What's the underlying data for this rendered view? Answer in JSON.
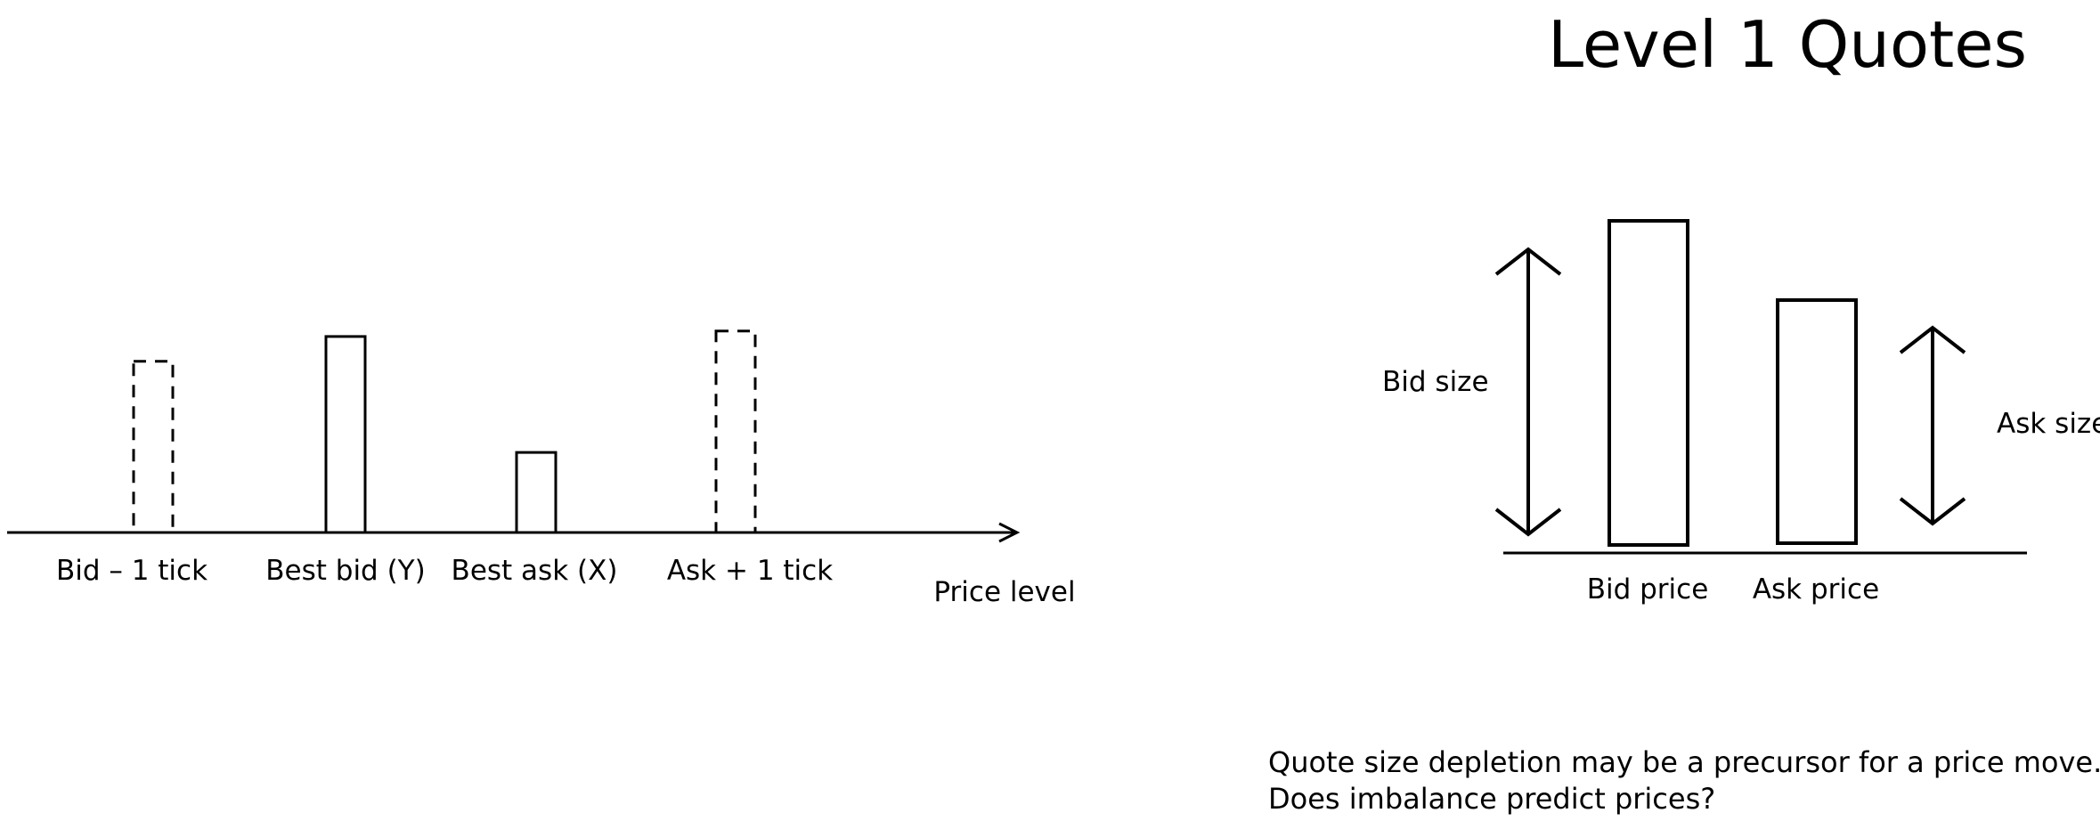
{
  "title": "Level 1 Quotes",
  "depth_diagram": {
    "levels": [
      {
        "label": "Bid – 1 tick",
        "size": 0.62,
        "style": "dashed"
      },
      {
        "label": "Best bid (Y)",
        "size": 0.71,
        "style": "solid"
      },
      {
        "label": "Best ask (X)",
        "size": 0.29,
        "style": "solid"
      },
      {
        "label": "Ask + 1 tick",
        "size": 0.73,
        "style": "dashed"
      }
    ],
    "axis_label": "Price level"
  },
  "level1_diagram": {
    "bars": [
      {
        "label": "Bid price",
        "size": 1.0
      },
      {
        "label": "Ask price",
        "size": 0.75
      }
    ],
    "bid_size_label": "Bid size",
    "ask_size_label": "Ask size"
  },
  "notes": [
    "Quote size depletion may be a precursor for a price move.",
    "Does imbalance predict prices?"
  ]
}
